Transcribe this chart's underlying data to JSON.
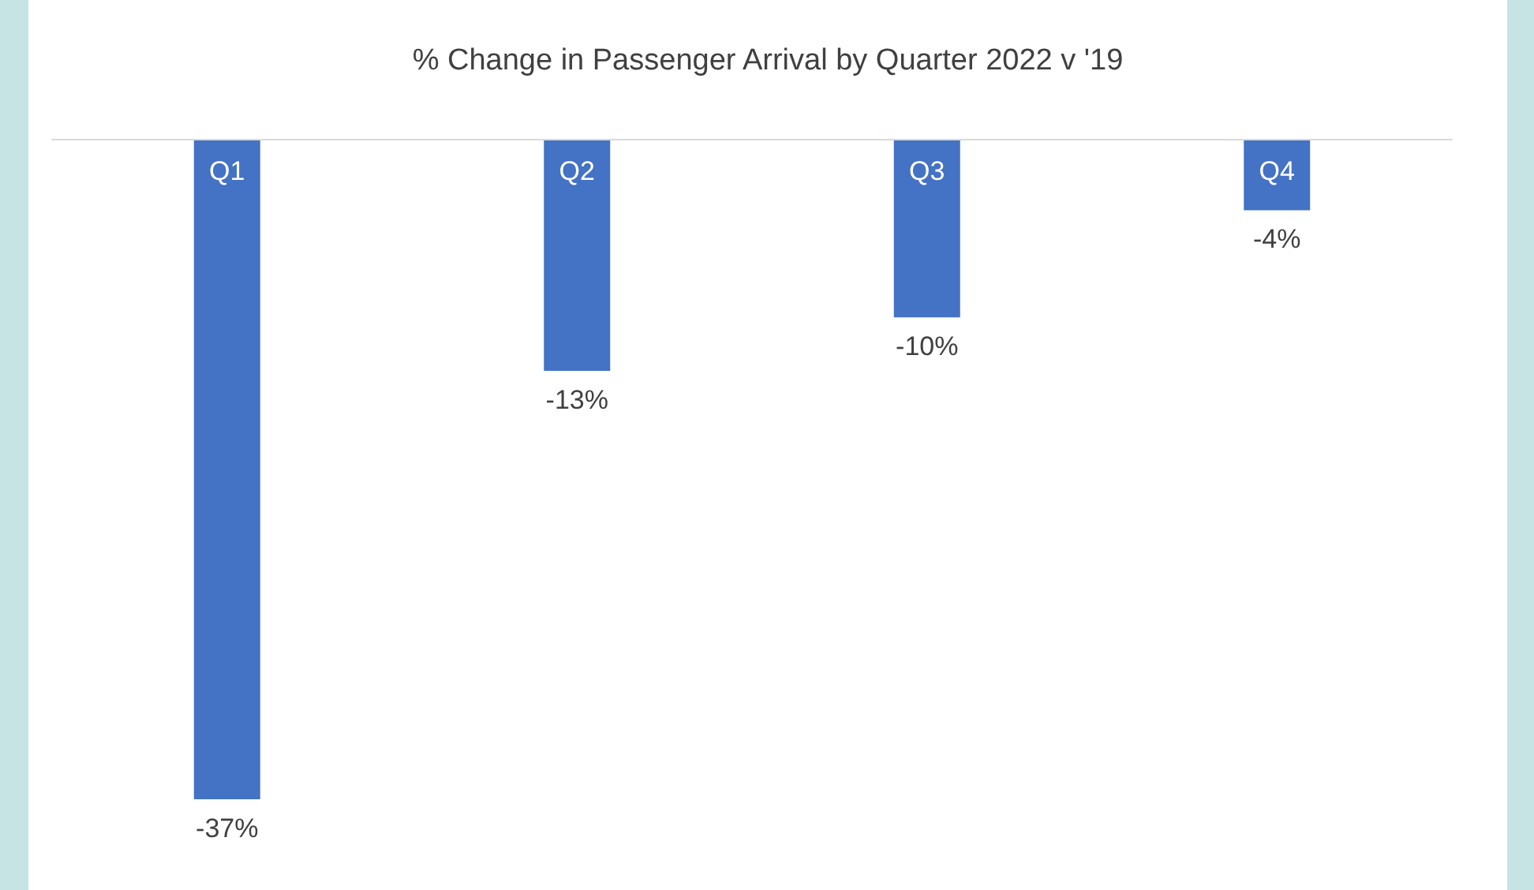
{
  "chart_data": {
    "type": "bar",
    "title": "% Change in Passenger Arrival by Quarter 2022 v '19",
    "categories": [
      "Q1",
      "Q2",
      "Q3",
      "Q4"
    ],
    "values": [
      -37,
      -13,
      -10,
      -4
    ],
    "value_labels": [
      "-37%",
      "-13%",
      "-10%",
      "-4%"
    ],
    "color": "#4472c4",
    "grid": false
  }
}
